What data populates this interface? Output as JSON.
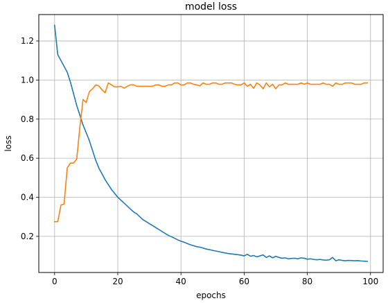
{
  "chart_data": {
    "type": "line",
    "title": "model loss",
    "xlabel": "epochs",
    "ylabel": "loss",
    "xlim": [
      -5,
      104
    ],
    "ylim": [
      0.015,
      1.335
    ],
    "xticks": [
      0,
      20,
      40,
      60,
      80,
      100
    ],
    "yticks": [
      0.2,
      0.4,
      0.6,
      0.8,
      1.0,
      1.2
    ],
    "xtick_labels": [
      "0",
      "20",
      "40",
      "60",
      "80",
      "100"
    ],
    "ytick_labels": [
      "0.2",
      "0.4",
      "0.6",
      "0.8",
      "1.0",
      "1.2"
    ],
    "grid": true,
    "legend": "none",
    "series": [
      {
        "color": "#1f77b4",
        "x": [
          0,
          1,
          2,
          3,
          4,
          5,
          6,
          7,
          8,
          9,
          10,
          11,
          12,
          13,
          14,
          15,
          16,
          17,
          18,
          19,
          20,
          21,
          22,
          23,
          24,
          25,
          26,
          27,
          28,
          29,
          30,
          31,
          32,
          33,
          34,
          35,
          36,
          37,
          38,
          39,
          40,
          41,
          42,
          43,
          44,
          45,
          46,
          47,
          48,
          49,
          50,
          51,
          52,
          53,
          54,
          55,
          56,
          57,
          58,
          59,
          60,
          61,
          62,
          63,
          64,
          65,
          66,
          67,
          68,
          69,
          70,
          71,
          72,
          73,
          74,
          75,
          76,
          77,
          78,
          79,
          80,
          81,
          82,
          83,
          84,
          85,
          86,
          87,
          88,
          89,
          90,
          91,
          92,
          93,
          94,
          95,
          96,
          97,
          98,
          99
        ],
        "values": [
          1.28,
          1.13,
          1.1,
          1.07,
          1.04,
          0.99,
          0.93,
          0.87,
          0.82,
          0.77,
          0.73,
          0.69,
          0.64,
          0.59,
          0.55,
          0.52,
          0.49,
          0.465,
          0.44,
          0.42,
          0.4,
          0.385,
          0.37,
          0.355,
          0.34,
          0.325,
          0.315,
          0.3,
          0.285,
          0.275,
          0.265,
          0.255,
          0.245,
          0.235,
          0.225,
          0.215,
          0.205,
          0.198,
          0.19,
          0.182,
          0.175,
          0.17,
          0.163,
          0.157,
          0.152,
          0.147,
          0.145,
          0.14,
          0.135,
          0.132,
          0.128,
          0.125,
          0.122,
          0.118,
          0.115,
          0.112,
          0.11,
          0.108,
          0.106,
          0.104,
          0.1,
          0.108,
          0.098,
          0.102,
          0.095,
          0.1,
          0.105,
          0.092,
          0.1,
          0.09,
          0.098,
          0.092,
          0.088,
          0.09,
          0.085,
          0.087,
          0.088,
          0.085,
          0.09,
          0.088,
          0.083,
          0.085,
          0.082,
          0.08,
          0.082,
          0.079,
          0.078,
          0.08,
          0.092,
          0.075,
          0.08,
          0.077,
          0.075,
          0.077,
          0.076,
          0.075,
          0.076,
          0.074,
          0.073,
          0.072
        ]
      },
      {
        "color": "#ff7f0e",
        "x": [
          0,
          1,
          2,
          3,
          4,
          5,
          6,
          7,
          8,
          9,
          10,
          11,
          12,
          13,
          14,
          15,
          16,
          17,
          18,
          19,
          20,
          21,
          22,
          23,
          24,
          25,
          26,
          27,
          28,
          29,
          30,
          31,
          32,
          33,
          34,
          35,
          36,
          37,
          38,
          39,
          40,
          41,
          42,
          43,
          44,
          45,
          46,
          47,
          48,
          49,
          50,
          51,
          52,
          53,
          54,
          55,
          56,
          57,
          58,
          59,
          60,
          61,
          62,
          63,
          64,
          65,
          66,
          67,
          68,
          69,
          70,
          71,
          72,
          73,
          74,
          75,
          76,
          77,
          78,
          79,
          80,
          81,
          82,
          83,
          84,
          85,
          86,
          87,
          88,
          89,
          90,
          91,
          92,
          93,
          94,
          95,
          96,
          97,
          98,
          99
        ],
        "values": [
          0.275,
          0.275,
          0.36,
          0.365,
          0.55,
          0.575,
          0.575,
          0.595,
          0.76,
          0.9,
          0.885,
          0.94,
          0.955,
          0.975,
          0.97,
          0.95,
          0.935,
          0.985,
          0.975,
          0.965,
          0.965,
          0.968,
          0.958,
          0.968,
          0.975,
          0.975,
          0.968,
          0.968,
          0.968,
          0.968,
          0.968,
          0.968,
          0.975,
          0.975,
          0.968,
          0.968,
          0.975,
          0.975,
          0.985,
          0.985,
          0.975,
          0.975,
          0.985,
          0.985,
          0.978,
          0.975,
          0.97,
          0.985,
          0.978,
          0.978,
          0.985,
          0.985,
          0.978,
          0.978,
          0.985,
          0.985,
          0.985,
          0.978,
          0.975,
          0.975,
          0.985,
          0.968,
          0.978,
          0.958,
          0.985,
          0.975,
          0.955,
          0.985,
          0.965,
          0.978,
          0.955,
          0.975,
          0.975,
          0.985,
          0.978,
          0.978,
          0.978,
          0.978,
          0.985,
          0.978,
          0.985,
          0.978,
          0.978,
          0.978,
          0.978,
          0.985,
          0.978,
          0.978,
          0.968,
          0.985,
          0.978,
          0.978,
          0.985,
          0.985,
          0.985,
          0.978,
          0.978,
          0.978,
          0.985,
          0.985
        ]
      }
    ]
  }
}
